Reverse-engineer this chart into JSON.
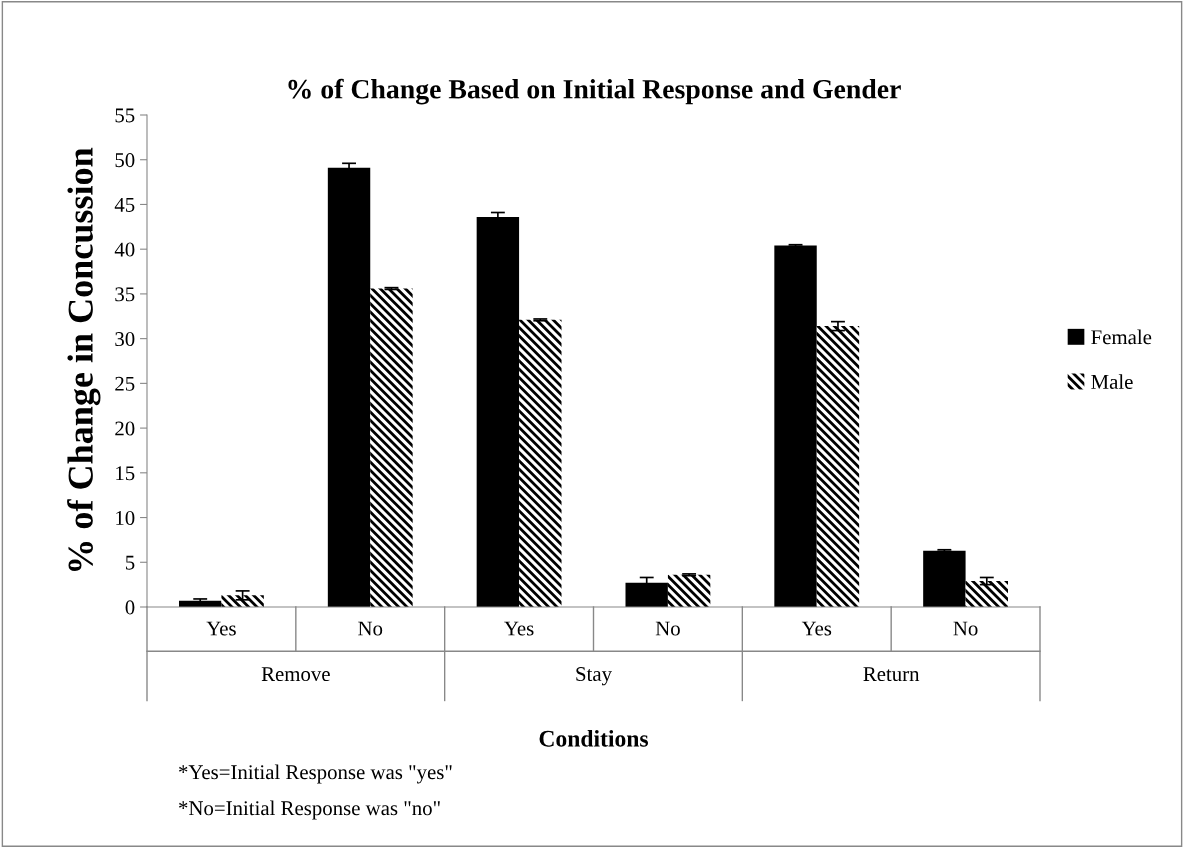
{
  "chart_data": {
    "type": "bar",
    "title": "% of Change Based on Initial Response and Gender",
    "xlabel": "Conditions",
    "ylabel": "% of Change in Concussion",
    "categories": [
      "Yes",
      "No",
      "Yes",
      "No",
      "Yes",
      "No"
    ],
    "series": [
      {
        "name": "Female",
        "color": "#000000",
        "values": [
          0.7,
          49.1,
          43.6,
          2.7,
          40.4,
          6.3
        ],
        "errors": [
          0.2,
          0.5,
          0.5,
          0.6,
          0.1,
          0.1
        ]
      },
      {
        "name": "Male",
        "color": "#ffffff",
        "values": [
          1.3,
          35.6,
          32.1,
          3.6,
          31.4,
          2.9
        ],
        "errors": [
          0.5,
          0.1,
          0.1,
          0.1,
          0.5,
          0.4
        ]
      }
    ],
    "annotations": [
      "Remove",
      "Stay",
      "Return",
      "*Yes=Initial Response was \"yes\"",
      "*No=Initial Response was \"no\""
    ],
    "ylim": [
      0,
      55
    ],
    "yticks": [
      0,
      5,
      10,
      15,
      20,
      25,
      30,
      35,
      40,
      45,
      50,
      55
    ],
    "grid": false,
    "legend": "right"
  }
}
